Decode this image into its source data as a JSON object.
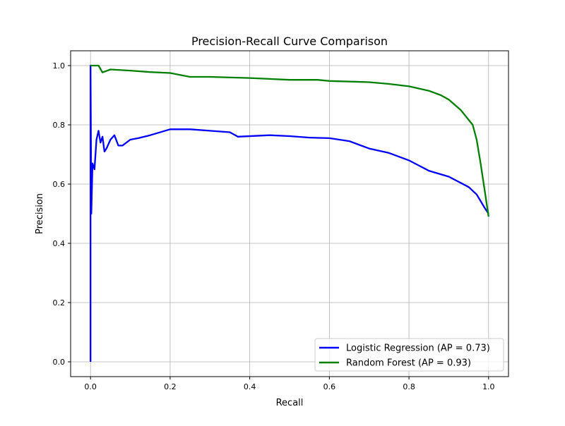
{
  "chart_data": {
    "type": "line",
    "title": "Precision-Recall Curve Comparison",
    "xlabel": "Recall",
    "ylabel": "Precision",
    "xlim": [
      -0.05,
      1.05
    ],
    "ylim": [
      -0.05,
      1.05
    ],
    "xticks": [
      "0.0",
      "0.2",
      "0.4",
      "0.6",
      "0.8",
      "1.0"
    ],
    "yticks": [
      "0.0",
      "0.2",
      "0.4",
      "0.6",
      "0.8",
      "1.0"
    ],
    "grid": true,
    "legend_position": "lower-right",
    "series": [
      {
        "name": "Logistic Regression (AP = 0.73)",
        "color": "#0000ff",
        "x": [
          0,
          0,
          0.002,
          0.005,
          0.01,
          0.015,
          0.02,
          0.025,
          0.03,
          0.035,
          0.04,
          0.05,
          0.06,
          0.07,
          0.08,
          0.1,
          0.12,
          0.15,
          0.2,
          0.25,
          0.3,
          0.35,
          0.37,
          0.45,
          0.5,
          0.55,
          0.6,
          0.65,
          0.7,
          0.75,
          0.8,
          0.85,
          0.9,
          0.95,
          0.97,
          0.99,
          1.0
        ],
        "y": [
          0,
          1.0,
          0.5,
          0.67,
          0.65,
          0.75,
          0.78,
          0.74,
          0.76,
          0.71,
          0.72,
          0.75,
          0.765,
          0.73,
          0.73,
          0.75,
          0.755,
          0.765,
          0.785,
          0.785,
          0.78,
          0.775,
          0.76,
          0.765,
          0.762,
          0.757,
          0.755,
          0.745,
          0.72,
          0.705,
          0.68,
          0.645,
          0.625,
          0.59,
          0.565,
          0.52,
          0.5
        ]
      },
      {
        "name": "Random Forest (AP = 0.93)",
        "color": "#008000",
        "x": [
          0,
          0.02,
          0.03,
          0.05,
          0.1,
          0.15,
          0.2,
          0.25,
          0.3,
          0.4,
          0.5,
          0.57,
          0.6,
          0.7,
          0.75,
          0.8,
          0.85,
          0.88,
          0.9,
          0.93,
          0.96,
          0.97,
          0.98,
          0.99,
          1.0
        ],
        "y": [
          1.0,
          1.0,
          0.977,
          0.987,
          0.983,
          0.978,
          0.975,
          0.962,
          0.962,
          0.958,
          0.952,
          0.952,
          0.948,
          0.944,
          0.938,
          0.93,
          0.915,
          0.9,
          0.885,
          0.85,
          0.8,
          0.75,
          0.67,
          0.58,
          0.49
        ]
      }
    ]
  }
}
